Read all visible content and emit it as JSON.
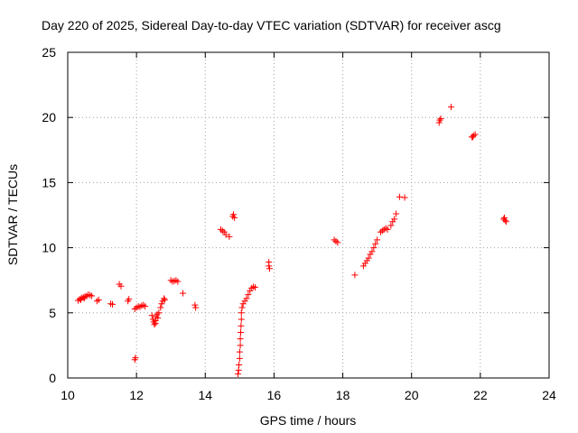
{
  "chart_data": {
    "type": "scatter",
    "title": "Day 220 of 2025, Sidereal Day-to-day VTEC variation (SDTVAR) for receiver ascg",
    "xlabel": "GPS time / hours",
    "ylabel": "SDTVAR / TECUs",
    "xlim": [
      10,
      24
    ],
    "ylim": [
      0,
      25
    ],
    "xticks": [
      "10",
      "12",
      "14",
      "16",
      "18",
      "20",
      "22",
      "24"
    ],
    "yticks": [
      "0",
      "5",
      "10",
      "15",
      "20",
      "25"
    ],
    "grid": true,
    "marker": "plus",
    "color": "#ff0000",
    "series": [
      {
        "name": "ascg",
        "points": [
          [
            10.3,
            5.95
          ],
          [
            10.35,
            6.05
          ],
          [
            10.4,
            6.15
          ],
          [
            10.45,
            6.2
          ],
          [
            10.5,
            6.25
          ],
          [
            10.55,
            6.3
          ],
          [
            10.6,
            6.4
          ],
          [
            10.65,
            6.35
          ],
          [
            10.7,
            6.3
          ],
          [
            10.38,
            6.0
          ],
          [
            10.48,
            6.1
          ],
          [
            10.9,
            6.0
          ],
          [
            10.85,
            5.9
          ],
          [
            11.25,
            5.7
          ],
          [
            11.3,
            5.65
          ],
          [
            11.5,
            7.2
          ],
          [
            11.55,
            7.05
          ],
          [
            11.75,
            5.9
          ],
          [
            11.78,
            6.05
          ],
          [
            11.95,
            1.4
          ],
          [
            11.97,
            1.55
          ],
          [
            11.95,
            5.3
          ],
          [
            12.0,
            5.4
          ],
          [
            12.05,
            5.5
          ],
          [
            12.1,
            5.45
          ],
          [
            12.15,
            5.55
          ],
          [
            12.2,
            5.6
          ],
          [
            12.25,
            5.5
          ],
          [
            12.45,
            4.8
          ],
          [
            12.48,
            4.5
          ],
          [
            12.5,
            4.3
          ],
          [
            12.52,
            4.1
          ],
          [
            12.55,
            4.4
          ],
          [
            12.57,
            4.7
          ],
          [
            12.6,
            4.9
          ],
          [
            12.62,
            4.6
          ],
          [
            12.65,
            5.0
          ],
          [
            12.55,
            4.2
          ],
          [
            12.7,
            5.4
          ],
          [
            12.73,
            5.7
          ],
          [
            12.76,
            5.9
          ],
          [
            12.8,
            6.1
          ],
          [
            12.82,
            6.0
          ],
          [
            13.0,
            7.5
          ],
          [
            13.05,
            7.4
          ],
          [
            13.1,
            7.45
          ],
          [
            13.15,
            7.5
          ],
          [
            13.2,
            7.4
          ],
          [
            13.35,
            6.5
          ],
          [
            13.7,
            5.6
          ],
          [
            13.72,
            5.4
          ],
          [
            14.45,
            11.4
          ],
          [
            14.5,
            11.3
          ],
          [
            14.55,
            11.2
          ],
          [
            14.6,
            11.0
          ],
          [
            14.7,
            10.85
          ],
          [
            14.8,
            12.4
          ],
          [
            14.85,
            12.3
          ],
          [
            14.82,
            12.55
          ],
          [
            14.95,
            0.3
          ],
          [
            14.97,
            0.6
          ],
          [
            14.98,
            1.0
          ],
          [
            15.0,
            1.5
          ],
          [
            15.0,
            2.0
          ],
          [
            15.02,
            2.5
          ],
          [
            15.02,
            3.0
          ],
          [
            15.03,
            3.5
          ],
          [
            15.04,
            4.0
          ],
          [
            15.05,
            4.5
          ],
          [
            15.05,
            5.0
          ],
          [
            15.07,
            5.4
          ],
          [
            15.1,
            5.7
          ],
          [
            15.15,
            5.9
          ],
          [
            15.2,
            6.1
          ],
          [
            15.25,
            6.4
          ],
          [
            15.3,
            6.7
          ],
          [
            15.35,
            6.9
          ],
          [
            15.4,
            7.0
          ],
          [
            15.45,
            6.95
          ],
          [
            15.85,
            8.6
          ],
          [
            15.87,
            8.4
          ],
          [
            15.85,
            8.9
          ],
          [
            17.75,
            10.6
          ],
          [
            17.8,
            10.5
          ],
          [
            17.85,
            10.4
          ],
          [
            18.35,
            7.9
          ],
          [
            18.6,
            8.6
          ],
          [
            18.65,
            8.8
          ],
          [
            18.7,
            9.0
          ],
          [
            18.75,
            9.2
          ],
          [
            18.8,
            9.5
          ],
          [
            18.85,
            9.7
          ],
          [
            18.9,
            10.0
          ],
          [
            18.95,
            10.3
          ],
          [
            19.0,
            10.6
          ],
          [
            19.1,
            11.2
          ],
          [
            19.15,
            11.3
          ],
          [
            19.2,
            11.4
          ],
          [
            19.25,
            11.5
          ],
          [
            19.3,
            11.4
          ],
          [
            19.4,
            11.7
          ],
          [
            19.45,
            12.0
          ],
          [
            19.5,
            12.2
          ],
          [
            19.55,
            12.6
          ],
          [
            19.65,
            13.9
          ],
          [
            19.8,
            13.85
          ],
          [
            20.8,
            19.6
          ],
          [
            20.82,
            19.8
          ],
          [
            20.85,
            19.9
          ],
          [
            21.15,
            20.8
          ],
          [
            21.75,
            18.5
          ],
          [
            21.8,
            18.6
          ],
          [
            21.85,
            18.7
          ],
          [
            21.78,
            18.5
          ],
          [
            22.7,
            12.3
          ],
          [
            22.72,
            12.1
          ],
          [
            22.75,
            12.0
          ],
          [
            22.68,
            12.2
          ]
        ]
      }
    ]
  }
}
